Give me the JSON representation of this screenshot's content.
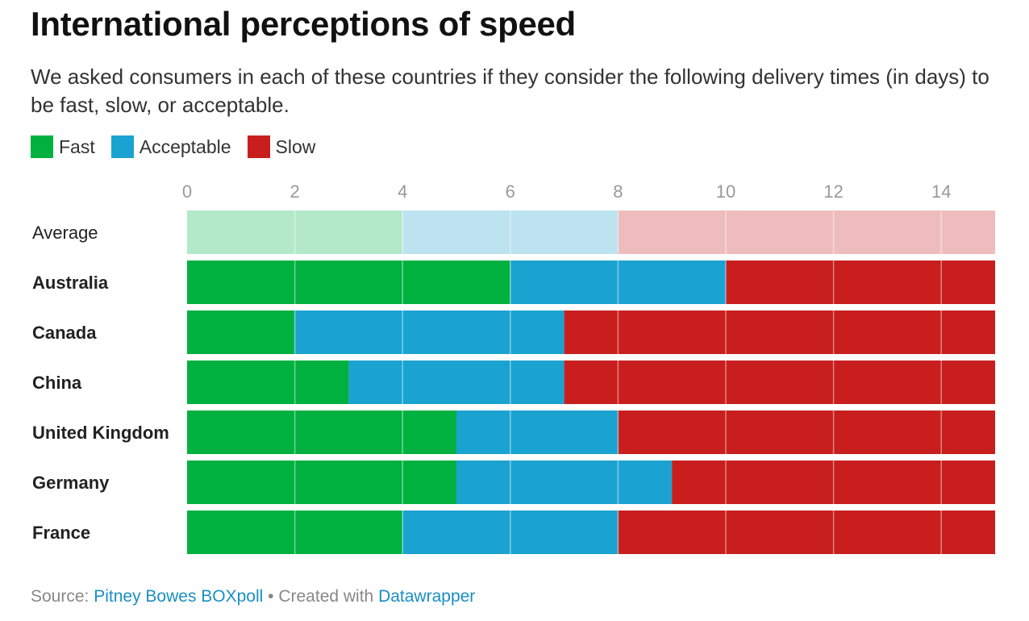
{
  "header": {
    "title": "International perceptions of speed",
    "subtitle": "We asked consumers in each of these countries if they consider the following delivery times (in days) to be fast, slow, or acceptable."
  },
  "legend": [
    {
      "label": "Fast",
      "color": "#00b140"
    },
    {
      "label": "Acceptable",
      "color": "#1aa3d1"
    },
    {
      "label": "Slow",
      "color": "#c81e1e"
    }
  ],
  "footer": {
    "source_prefix": "Source: ",
    "source_link": "Pitney Bowes BOXpoll",
    "separator": " • Created with ",
    "tool_link": "Datawrapper"
  },
  "chart_data": {
    "type": "bar",
    "stacked": true,
    "orientation": "horizontal",
    "xlim": [
      0,
      15
    ],
    "xticks": [
      0,
      2,
      4,
      6,
      8,
      10,
      12,
      14
    ],
    "tick_labels": [
      "0",
      "2",
      "4",
      "6",
      "8",
      "10",
      "12",
      "14"
    ],
    "grid": true,
    "legend_position": "top-left",
    "categories": [
      "Average",
      "Australia",
      "Canada",
      "China",
      "United Kingdom",
      "Germany",
      "France"
    ],
    "series": [
      {
        "name": "Fast",
        "color": "#00b140",
        "values": [
          4,
          6,
          2,
          3,
          5,
          5,
          4
        ]
      },
      {
        "name": "Acceptable",
        "color": "#1aa3d1",
        "values": [
          4,
          4,
          5,
          4,
          3,
          4,
          4
        ]
      },
      {
        "name": "Slow",
        "color": "#c81e1e",
        "values": [
          7,
          5,
          8,
          8,
          7,
          6,
          7
        ]
      }
    ],
    "highlight_rows": {
      "Average": {
        "light": true,
        "colors": [
          "#b3e8c9",
          "#bce3ef",
          "#efbcbd"
        ]
      }
    }
  }
}
